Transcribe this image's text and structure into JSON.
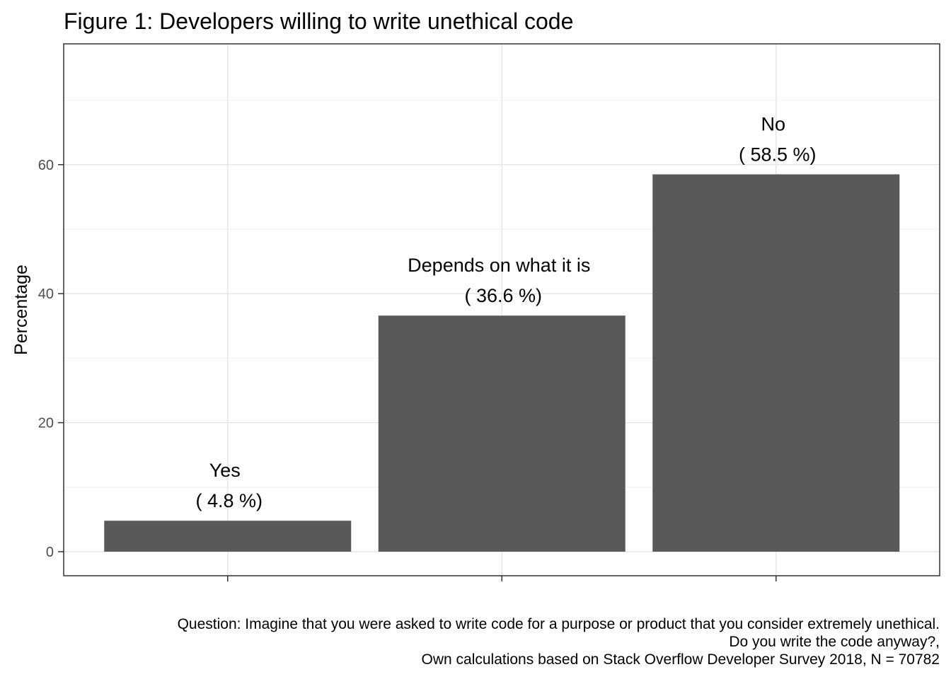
{
  "title": "Figure 1: Developers willing to write unethical code",
  "chart_data": {
    "type": "bar",
    "categories": [
      "Yes",
      "Depends on what it is",
      "No"
    ],
    "values": [
      4.8,
      36.6,
      58.5
    ],
    "value_labels": [
      "( 4.8 %)",
      "( 36.6 %)",
      "( 58.5 %)"
    ],
    "xlabel": "",
    "ylabel": "Percentage",
    "ylim": [
      0,
      75
    ],
    "yticks": [
      0,
      20,
      40,
      60
    ],
    "grid": true,
    "bar_color": "#595959"
  },
  "caption": {
    "lines": [
      "Question: Imagine that you were asked to write code for a purpose or product that you consider extremely unethical.",
      "Do you write the code anyway?,",
      "Own calculations based on Stack Overflow Developer Survey 2018, N = 70782"
    ]
  }
}
